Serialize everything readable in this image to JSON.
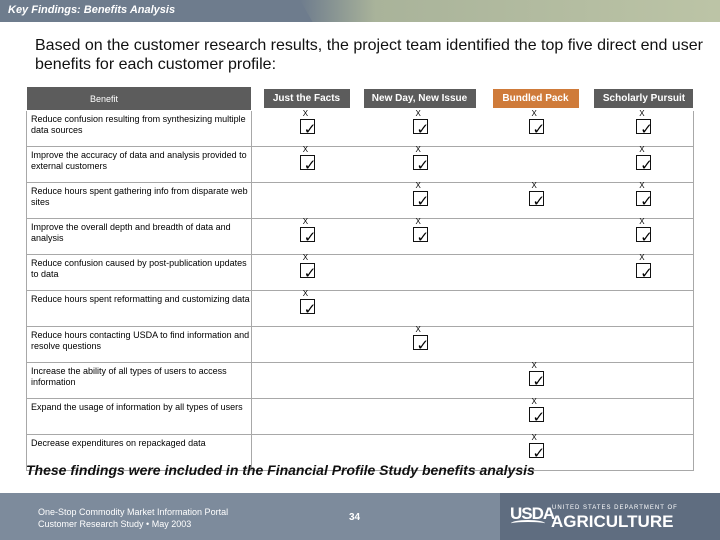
{
  "header": {
    "title": "Key Findings: Benefits Analysis"
  },
  "intro": "Based on the customer research results, the project team identified the top five direct end user benefits for each customer profile:",
  "table": {
    "benefit_header": "Benefit",
    "profiles": [
      "Just the Facts",
      "New Day, New Issue",
      "Bundled Pack",
      "Scholarly Pursuit"
    ],
    "mark_label": "X",
    "rows": [
      {
        "label": "Reduce confusion resulting from synthesizing multiple data sources",
        "marks": [
          true,
          true,
          true,
          true
        ]
      },
      {
        "label": "Improve the accuracy of data and analysis provided to external customers",
        "marks": [
          true,
          true,
          false,
          true
        ]
      },
      {
        "label": "Reduce hours spent gathering info from disparate web sites",
        "marks": [
          false,
          true,
          true,
          true
        ]
      },
      {
        "label": "Improve the overall depth and breadth of data and analysis",
        "marks": [
          true,
          true,
          false,
          true
        ]
      },
      {
        "label": "Reduce confusion caused by post-publication updates to data",
        "marks": [
          true,
          false,
          false,
          true
        ]
      },
      {
        "label": "Reduce hours spent reformatting and customizing data",
        "marks": [
          true,
          false,
          false,
          false
        ]
      },
      {
        "label": "Reduce hours contacting USDA to find information and resolve questions",
        "marks": [
          false,
          true,
          false,
          false
        ]
      },
      {
        "label": "Increase the ability of all types of users to access information",
        "marks": [
          false,
          false,
          true,
          false
        ]
      },
      {
        "label": "Expand the usage of information by all types of users",
        "marks": [
          false,
          false,
          true,
          false
        ]
      },
      {
        "label": "Decrease expenditures on repackaged data",
        "marks": [
          false,
          false,
          true,
          false
        ]
      }
    ]
  },
  "findings": "These findings were included in the Financial Profile Study benefits analysis",
  "footer": {
    "line1": "One-Stop Commodity Market Information Portal",
    "line2": "Customer Research Study  •  May 2003",
    "page": "34",
    "logo_usda": "USDA",
    "logo_dept": "UNITED STATES DEPARTMENT OF",
    "logo_agri": "AGRICULTURE"
  },
  "colors": {
    "accent_header": "#cf7b3a",
    "header_dark": "#5c5c5c",
    "bar": "#7d8b9c"
  }
}
